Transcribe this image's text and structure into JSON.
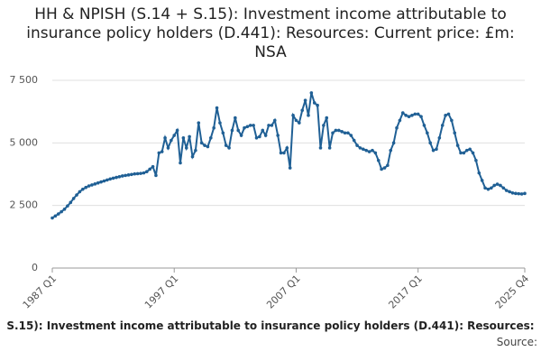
{
  "chart_data": {
    "type": "line",
    "title": "HH & NPISH (S.14 + S.15): Investment income attributable to insurance policy holders (D.441): Resources: Current price: £m: NSA",
    "footer": "S.15): Investment income attributable to insurance policy holders (D.441): Resources:",
    "source": "Source:",
    "categories": [
      "1987 Q1",
      null,
      null,
      null,
      null,
      null,
      null,
      null,
      null,
      null,
      null,
      null,
      null,
      null,
      null,
      null,
      null,
      null,
      null,
      null,
      null,
      null,
      null,
      null,
      null,
      null,
      null,
      null,
      null,
      null,
      null,
      null,
      null,
      null,
      null,
      null,
      null,
      null,
      null,
      null,
      "1997 Q1",
      null,
      null,
      null,
      null,
      null,
      null,
      null,
      null,
      null,
      null,
      null,
      null,
      null,
      null,
      null,
      null,
      null,
      null,
      null,
      null,
      null,
      null,
      null,
      null,
      null,
      null,
      null,
      null,
      null,
      null,
      null,
      null,
      null,
      null,
      null,
      null,
      null,
      null,
      null,
      "2007 Q1",
      null,
      null,
      null,
      null,
      null,
      null,
      null,
      null,
      null,
      null,
      null,
      null,
      null,
      null,
      null,
      null,
      null,
      null,
      null,
      null,
      null,
      null,
      null,
      null,
      null,
      null,
      null,
      null,
      null,
      null,
      null,
      null,
      null,
      null,
      null,
      null,
      null,
      null,
      null,
      "2017 Q1",
      null,
      null,
      null,
      null,
      null,
      null,
      null,
      null,
      null,
      null,
      null,
      null,
      null,
      null,
      null,
      null,
      null,
      null,
      null,
      null,
      null,
      null,
      null,
      null,
      null,
      null,
      null,
      null,
      null,
      null,
      null,
      null,
      null,
      null,
      "2025 Q4"
    ],
    "series": [
      {
        "color": "#206095",
        "values": [
          2000,
          2080,
          2160,
          2250,
          2350,
          2480,
          2620,
          2780,
          2920,
          3050,
          3150,
          3220,
          3280,
          3320,
          3360,
          3400,
          3440,
          3480,
          3520,
          3560,
          3590,
          3620,
          3650,
          3680,
          3700,
          3720,
          3740,
          3760,
          3770,
          3780,
          3800,
          3850,
          3950,
          4050,
          3700,
          4600,
          4650,
          5200,
          4800,
          5100,
          5300,
          5500,
          4200,
          5200,
          4800,
          5250,
          4450,
          4700,
          5800,
          5000,
          4900,
          4850,
          5200,
          5600,
          6400,
          5800,
          5400,
          4900,
          4800,
          5500,
          6000,
          5500,
          5300,
          5600,
          5650,
          5700,
          5700,
          5200,
          5250,
          5500,
          5300,
          5700,
          5700,
          5900,
          5300,
          4600,
          4600,
          4800,
          4000,
          6100,
          5900,
          5800,
          6300,
          6700,
          6100,
          7000,
          6600,
          6500,
          4800,
          5700,
          6000,
          4800,
          5400,
          5500,
          5500,
          5450,
          5400,
          5400,
          5300,
          5100,
          4900,
          4800,
          4750,
          4700,
          4650,
          4700,
          4600,
          4300,
          3950,
          4000,
          4100,
          4700,
          5000,
          5600,
          5900,
          6200,
          6100,
          6050,
          6100,
          6150,
          6150,
          6050,
          5700,
          5400,
          5000,
          4700,
          4750,
          5200,
          5700,
          6100,
          6150,
          5900,
          5400,
          4900,
          4600,
          4600,
          4700,
          4750,
          4600,
          4300,
          3800,
          3500,
          3200,
          3150,
          3200,
          3300,
          3350,
          3300,
          3200,
          3100,
          3050,
          3000,
          2980,
          2970,
          2960,
          2980
        ]
      }
    ],
    "ylim": [
      0,
      7500
    ],
    "yticks": [
      0,
      {
        "value": 2500,
        "label": "2 500"
      },
      {
        "value": 5000,
        "label": "5 000"
      },
      {
        "value": 7500,
        "label": "7 500"
      }
    ],
    "grid": true
  }
}
